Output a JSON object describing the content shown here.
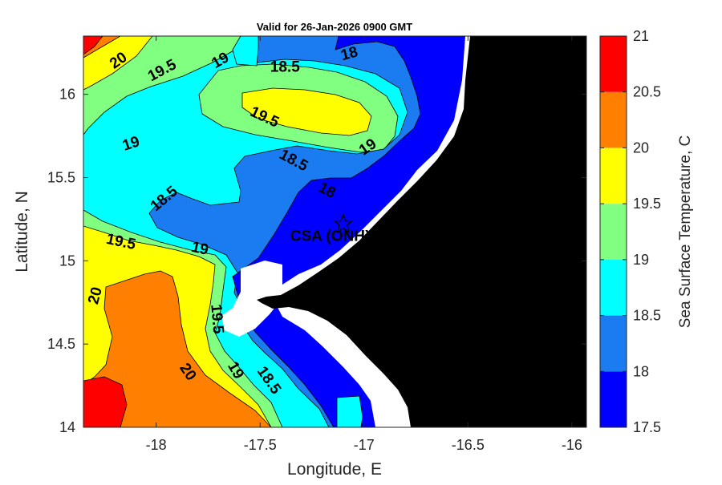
{
  "chart_data": {
    "type": "contourf",
    "title": "Valid for 26-Jan-2026 0900 GMT",
    "xlabel": "Longitude, E",
    "ylabel": "Latitude, N",
    "xlim": [
      -18.35,
      -15.93
    ],
    "ylim": [
      14.0,
      16.35
    ],
    "xticks": [
      -18,
      -17.5,
      -17,
      -16.5,
      -16
    ],
    "xtick_labels": [
      "-18",
      "-17.5",
      "-17",
      "-16.5",
      "-16"
    ],
    "yticks": [
      14,
      14.5,
      15,
      15.5,
      16
    ],
    "ytick_labels": [
      "14",
      "14.5",
      "15",
      "15.5",
      "16"
    ],
    "colorbar": {
      "label": "Sea Surface Temperature, C",
      "levels": [
        17.5,
        18,
        18.5,
        19,
        19.5,
        20,
        20.5,
        21
      ],
      "tick_labels": [
        "17.5",
        "18",
        "18.5",
        "19",
        "19.5",
        "20",
        "20.5",
        "21"
      ],
      "colors": [
        "#0000ff",
        "#1a7cf0",
        "#00ffff",
        "#80ff80",
        "#ffff00",
        "#ff8000",
        "#ff0000"
      ]
    },
    "contour_labels": [
      {
        "text": "20",
        "lon": -18.18,
        "lat": 16.2,
        "angle": -35
      },
      {
        "text": "19.5",
        "lon": -17.97,
        "lat": 16.14,
        "angle": -28
      },
      {
        "text": "19",
        "lon": -17.69,
        "lat": 16.2,
        "angle": -30
      },
      {
        "text": "18.5",
        "lon": -17.38,
        "lat": 16.16,
        "angle": 0
      },
      {
        "text": "18",
        "lon": -17.07,
        "lat": 16.24,
        "angle": -15
      },
      {
        "text": "19.5",
        "lon": -17.48,
        "lat": 15.86,
        "angle": 25
      },
      {
        "text": "19",
        "lon": -18.12,
        "lat": 15.7,
        "angle": -18
      },
      {
        "text": "19",
        "lon": -16.98,
        "lat": 15.68,
        "angle": -35
      },
      {
        "text": "18.5",
        "lon": -17.34,
        "lat": 15.6,
        "angle": 28
      },
      {
        "text": "18",
        "lon": -17.18,
        "lat": 15.42,
        "angle": 28
      },
      {
        "text": "18.5",
        "lon": -17.96,
        "lat": 15.37,
        "angle": -40
      },
      {
        "text": "19.5",
        "lon": -18.17,
        "lat": 15.11,
        "angle": 12
      },
      {
        "text": "19",
        "lon": -17.79,
        "lat": 15.07,
        "angle": 12
      },
      {
        "text": "20",
        "lon": -18.29,
        "lat": 14.79,
        "angle": -75
      },
      {
        "text": "19.5",
        "lon": -17.71,
        "lat": 14.65,
        "angle": 85
      },
      {
        "text": "20",
        "lon": -17.85,
        "lat": 14.33,
        "angle": 55
      },
      {
        "text": "19",
        "lon": -17.62,
        "lat": 14.34,
        "angle": 60
      },
      {
        "text": "18.5",
        "lon": -17.46,
        "lat": 14.28,
        "angle": 55
      }
    ],
    "site": {
      "name": "CSA (ONHYM) PPL EEZ",
      "lon": -17.1,
      "lat": 15.22
    }
  }
}
